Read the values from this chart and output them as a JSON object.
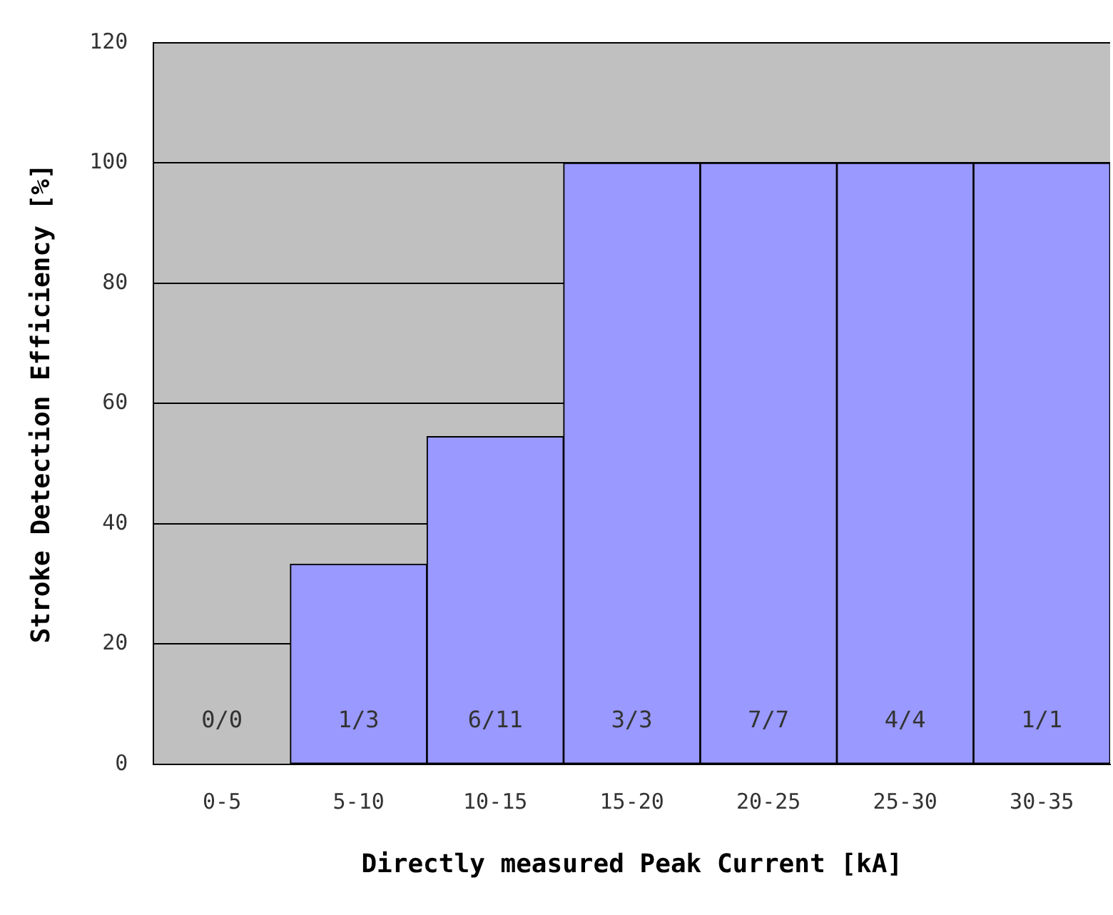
{
  "chart_data": {
    "type": "bar",
    "xlabel": "Directly measured Peak Current [kA]",
    "ylabel": "Stroke Detection Efficiency [%]",
    "categories": [
      "0-5",
      "5-10",
      "10-15",
      "15-20",
      "20-25",
      "25-30",
      "30-35"
    ],
    "values": [
      0,
      33.3,
      54.5,
      100,
      100,
      100,
      100
    ],
    "annotations": [
      "0/0",
      "1/3",
      "6/11",
      "3/3",
      "7/7",
      "4/4",
      "1/1"
    ],
    "color": "#9999ff",
    "ylim": [
      0,
      120
    ],
    "yticks": [
      0,
      20,
      40,
      60,
      80,
      100,
      120
    ],
    "grid": "y",
    "legend": false
  }
}
